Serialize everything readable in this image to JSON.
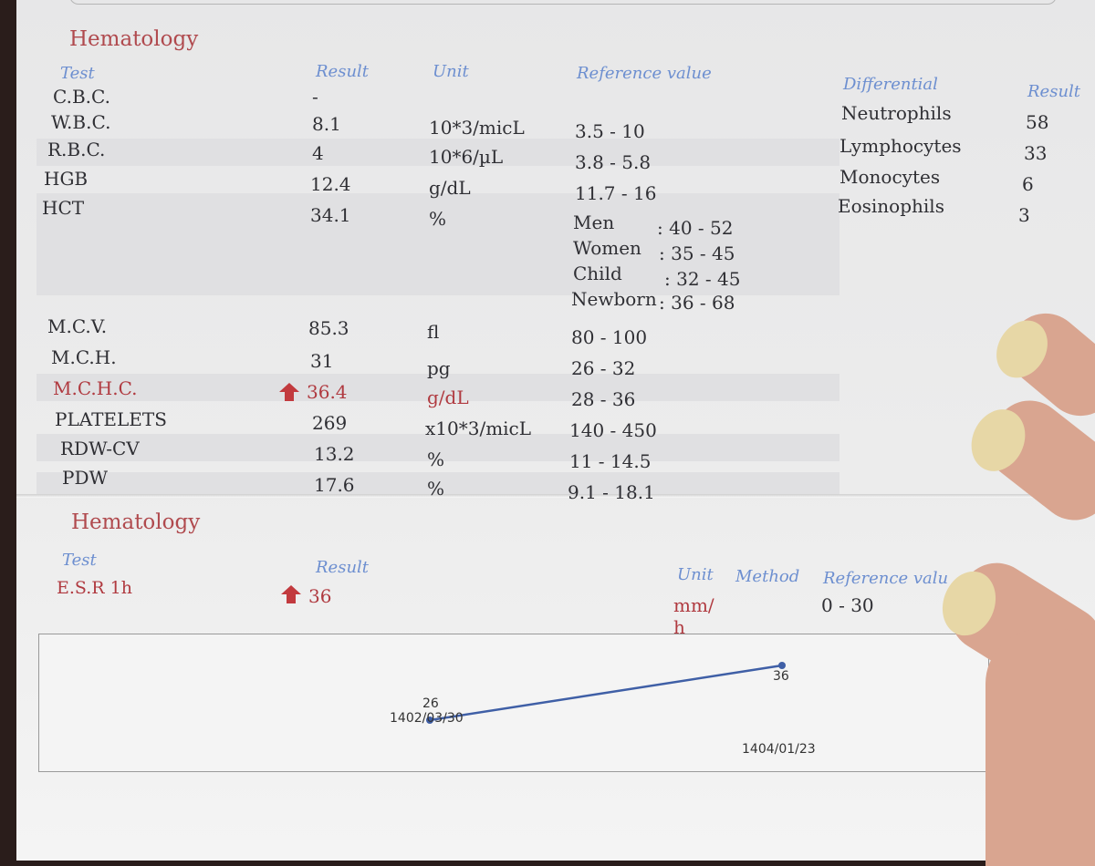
{
  "cbc": {
    "title": "Hematology",
    "headers": {
      "test": "Test",
      "result": "Result",
      "unit": "Unit",
      "reference": "Reference value"
    },
    "rows": [
      {
        "test": "C.B.C.",
        "result": "-",
        "unit": "",
        "ref": ""
      },
      {
        "test": "W.B.C.",
        "result": "8.1",
        "unit": "10*3/micL",
        "ref": "3.5 - 10"
      },
      {
        "test": "R.B.C.",
        "result": "4",
        "unit": "10*6/µL",
        "ref": "3.8 - 5.8"
      },
      {
        "test": "HGB",
        "result": "12.4",
        "unit": "g/dL",
        "ref": "11.7 - 16"
      },
      {
        "test": "HCT",
        "result": "34.1",
        "unit": "%",
        "ref": ""
      },
      {
        "test": "M.C.V.",
        "result": "85.3",
        "unit": "fl",
        "ref": "80 - 100"
      },
      {
        "test": "M.C.H.",
        "result": "31",
        "unit": "pg",
        "ref": "26 - 32"
      },
      {
        "test": "M.C.H.C.",
        "result": "36.4",
        "unit": "g/dL",
        "ref": "28 - 36",
        "flag": "high"
      },
      {
        "test": "PLATELETS",
        "result": "269",
        "unit": "x10*3/micL",
        "ref": "140 - 450"
      },
      {
        "test": "RDW-CV",
        "result": "13.2",
        "unit": "%",
        "ref": "11 - 14.5"
      },
      {
        "test": "PDW",
        "result": "17.6",
        "unit": "%",
        "ref": "9.1 - 18.1"
      }
    ],
    "hct_reference": [
      {
        "group": "Men",
        "range": ": 40 - 52"
      },
      {
        "group": "Women",
        "range": ": 35 - 45"
      },
      {
        "group": "Child",
        "range": ": 32 - 45"
      },
      {
        "group": "Newborn",
        "range": ": 36 - 68"
      }
    ]
  },
  "differential": {
    "headers": {
      "name": "Differential",
      "result": "Result"
    },
    "rows": [
      {
        "name": "Neutrophils",
        "result": "58"
      },
      {
        "name": "Lymphocytes",
        "result": "33"
      },
      {
        "name": "Monocytes",
        "result": "6"
      },
      {
        "name": "Eosinophils",
        "result": "3"
      }
    ]
  },
  "esr": {
    "title": "Hematology",
    "headers": {
      "test": "Test",
      "result": "Result",
      "unit": "Unit",
      "method": "Method",
      "reference": "Reference valu"
    },
    "row": {
      "test": "E.S.R 1h",
      "result": "36",
      "unit_line1": "mm/",
      "unit_line2": "h",
      "ref": "0 - 30",
      "flag": "high"
    }
  },
  "colors": {
    "abnormal": "#b03a40",
    "header": "#6d8fd0",
    "chart_line": "#3f5fa6"
  },
  "chart_data": {
    "type": "line",
    "title": "",
    "xlabel": "",
    "ylabel": "",
    "x": [
      "1402/03/30",
      "1404/01/23"
    ],
    "series": [
      {
        "values": [
          26,
          36
        ]
      }
    ],
    "data_labels": [
      "26",
      "36"
    ],
    "grid": false
  }
}
